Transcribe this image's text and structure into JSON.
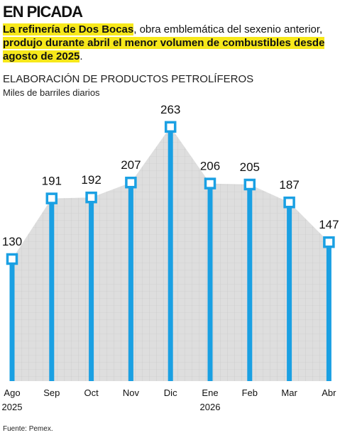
{
  "header": {
    "title": "EN PICADA",
    "subtitle": [
      {
        "text": "La refinería de Dos Bocas",
        "highlight": true
      },
      {
        "text": ", obra emblemática del sexenio anterior, ",
        "highlight": false
      },
      {
        "text": "produjo durante abril el menor volumen de combustibles desde agosto de 2025",
        "highlight": true
      },
      {
        "text": ".",
        "highlight": false
      }
    ],
    "highlight_color": "#f7e81a"
  },
  "chart_data": {
    "type": "lollipop-area",
    "title": "ELABORACIÓN DE PRODUCTOS PETROLÍFEROS",
    "ylabel": "Miles de barriles diarios",
    "categories": [
      "Ago\n2025",
      "Sep",
      "Oct",
      "Nov",
      "Dic",
      "Ene\n2026",
      "Feb",
      "Mar",
      "Abr"
    ],
    "values": [
      130,
      191,
      192,
      207,
      263,
      206,
      205,
      187,
      147
    ],
    "color": "#1aa0e3",
    "area_color": "#dedede",
    "ylim": [
      0,
      280
    ]
  },
  "footer": {
    "source": "Fuente: Pemex."
  }
}
